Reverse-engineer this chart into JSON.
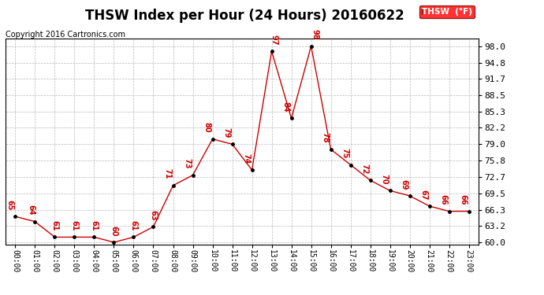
{
  "title": "THSW Index per Hour (24 Hours) 20160622",
  "copyright": "Copyright 2016 Cartronics.com",
  "legend_label": "THSW  (°F)",
  "hours": [
    0,
    1,
    2,
    3,
    4,
    5,
    6,
    7,
    8,
    9,
    10,
    11,
    12,
    13,
    14,
    15,
    16,
    17,
    18,
    19,
    20,
    21,
    22,
    23
  ],
  "values": [
    65,
    64,
    61,
    61,
    61,
    60,
    61,
    63,
    71,
    73,
    80,
    79,
    74,
    97,
    84,
    98,
    78,
    75,
    72,
    70,
    69,
    67,
    66,
    66
  ],
  "x_labels": [
    "00:00",
    "01:00",
    "02:00",
    "03:00",
    "04:00",
    "05:00",
    "06:00",
    "07:00",
    "08:00",
    "09:00",
    "10:00",
    "11:00",
    "12:00",
    "13:00",
    "14:00",
    "15:00",
    "16:00",
    "17:00",
    "18:00",
    "19:00",
    "20:00",
    "21:00",
    "22:00",
    "23:00"
  ],
  "y_ticks": [
    60.0,
    63.2,
    66.3,
    69.5,
    72.7,
    75.8,
    79.0,
    82.2,
    85.3,
    88.5,
    91.7,
    94.8,
    98.0
  ],
  "ylim": [
    59.5,
    99.5
  ],
  "line_color": "#cc0000",
  "marker_color": "black",
  "data_label_color": "#cc0000",
  "bg_color": "#ffffff",
  "grid_color": "#b0b0b0",
  "title_fontsize": 12,
  "copyright_fontsize": 7,
  "label_fontsize": 7,
  "tick_fontsize": 7,
  "ytick_fontsize": 8,
  "offsets_x": [
    -0.3,
    -0.2,
    0,
    0,
    0,
    0,
    0,
    0,
    -0.3,
    -0.3,
    -0.3,
    -0.3,
    -0.3,
    0.1,
    -0.3,
    0.2,
    -0.3,
    -0.3,
    -0.3,
    -0.3,
    -0.3,
    -0.3,
    -0.3,
    -0.3
  ],
  "offsets_y": [
    1.2,
    1.2,
    1.2,
    1.2,
    1.2,
    1.2,
    1.2,
    1.2,
    1.2,
    1.2,
    1.2,
    1.2,
    1.2,
    1.2,
    1.2,
    1.2,
    1.2,
    1.2,
    1.2,
    1.2,
    1.2,
    1.2,
    1.2,
    1.2
  ]
}
